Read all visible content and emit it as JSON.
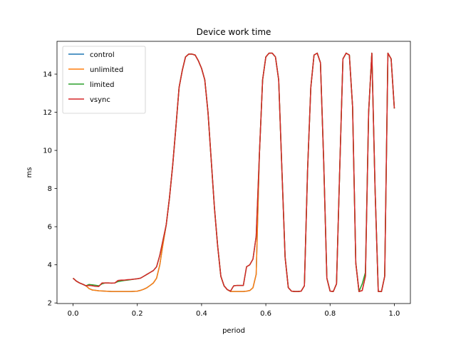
{
  "chart_data": {
    "type": "line",
    "title": "Device work time",
    "xlabel": "period",
    "ylabel": "ms",
    "x": [
      0,
      0.01,
      0.02,
      0.03,
      0.04,
      0.05,
      0.06,
      0.07,
      0.08,
      0.09,
      0.1,
      0.11,
      0.12,
      0.13,
      0.14,
      0.15,
      0.16,
      0.17,
      0.18,
      0.19,
      0.2,
      0.21,
      0.22,
      0.23,
      0.24,
      0.25,
      0.26,
      0.27,
      0.28,
      0.29,
      0.3,
      0.31,
      0.32,
      0.33,
      0.34,
      0.35,
      0.36,
      0.37,
      0.38,
      0.39,
      0.4,
      0.41,
      0.42,
      0.43,
      0.44,
      0.45,
      0.46,
      0.47,
      0.48,
      0.49,
      0.5,
      0.51,
      0.52,
      0.53,
      0.54,
      0.55,
      0.56,
      0.57,
      0.58,
      0.59,
      0.6,
      0.61,
      0.62,
      0.63,
      0.64,
      0.65,
      0.66,
      0.67,
      0.68,
      0.69,
      0.7,
      0.71,
      0.72,
      0.73,
      0.74,
      0.75,
      0.76,
      0.77,
      0.78,
      0.79,
      0.8,
      0.81,
      0.82,
      0.83,
      0.84,
      0.85,
      0.86,
      0.87,
      0.88,
      0.89,
      0.9,
      0.91,
      0.92,
      0.93,
      0.94,
      0.95,
      0.96,
      0.97,
      0.98,
      0.99,
      1
    ],
    "series": [
      {
        "name": "control",
        "color": "#1f77b4",
        "values": [
          3.3,
          3.15,
          3.05,
          2.98,
          2.9,
          2.75,
          2.68,
          2.66,
          2.64,
          2.63,
          2.62,
          2.61,
          2.6,
          2.6,
          2.6,
          2.6,
          2.6,
          2.6,
          2.6,
          2.61,
          2.62,
          2.66,
          2.72,
          2.8,
          2.92,
          3.05,
          3.3,
          4.0,
          5.1,
          6.1,
          7.5,
          9.2,
          11.2,
          13.3,
          14.2,
          14.9,
          15.05,
          15.05,
          15.0,
          14.7,
          14.3,
          13.7,
          12.0,
          9.5,
          7.0,
          5.0,
          3.4,
          2.9,
          2.7,
          2.6,
          2.6,
          2.6,
          2.6,
          2.6,
          2.62,
          2.65,
          2.8,
          3.5,
          9.8,
          13.7,
          14.9,
          15.1,
          15.1,
          14.9,
          13.7,
          9.0,
          4.4,
          2.8,
          2.62,
          2.6,
          2.6,
          2.62,
          2.9,
          9.0,
          13.3,
          15.0,
          15.1,
          14.6,
          9.5,
          3.3,
          2.62,
          2.6,
          3.0,
          9.0,
          14.8,
          15.1,
          15.0,
          12.3,
          4.1,
          2.6,
          2.65,
          3.4,
          12.0,
          15.1,
          8.0,
          2.6,
          2.6,
          3.4,
          15.1,
          14.8,
          12.2
        ]
      },
      {
        "name": "unlimited",
        "color": "#ff7f0e",
        "values": [
          3.3,
          3.15,
          3.05,
          2.98,
          2.9,
          2.75,
          2.68,
          2.66,
          2.64,
          2.63,
          2.62,
          2.61,
          2.6,
          2.6,
          2.6,
          2.6,
          2.6,
          2.6,
          2.6,
          2.61,
          2.62,
          2.66,
          2.72,
          2.8,
          2.92,
          3.05,
          3.3,
          4.0,
          5.1,
          6.1,
          7.5,
          9.2,
          11.2,
          13.3,
          14.2,
          14.9,
          15.05,
          15.05,
          15.0,
          14.7,
          14.3,
          13.7,
          12.0,
          9.5,
          7.0,
          5.0,
          3.4,
          2.9,
          2.7,
          2.6,
          2.6,
          2.6,
          2.6,
          2.6,
          2.62,
          2.65,
          2.8,
          3.5,
          9.8,
          13.7,
          14.9,
          15.1,
          15.1,
          14.9,
          13.7,
          9.0,
          4.4,
          2.8,
          2.62,
          2.6,
          2.6,
          2.62,
          2.9,
          9.0,
          13.3,
          15.0,
          15.1,
          14.6,
          9.5,
          3.3,
          2.62,
          2.6,
          3.0,
          9.0,
          14.8,
          15.1,
          15.0,
          12.3,
          4.1,
          2.6,
          2.65,
          3.4,
          12.0,
          15.1,
          8.0,
          2.6,
          2.6,
          3.4,
          15.1,
          14.8,
          12.2
        ]
      },
      {
        "name": "limited",
        "color": "#2ca02c",
        "values": [
          3.3,
          3.15,
          3.05,
          2.98,
          2.9,
          2.97,
          2.95,
          2.93,
          2.9,
          3.0,
          3.05,
          3.05,
          3.04,
          3.05,
          3.12,
          3.15,
          3.18,
          3.2,
          3.22,
          3.25,
          3.27,
          3.3,
          3.4,
          3.5,
          3.6,
          3.7,
          3.9,
          4.5,
          5.3,
          6.1,
          7.5,
          9.2,
          11.2,
          13.3,
          14.2,
          14.9,
          15.05,
          15.05,
          15.0,
          14.7,
          14.3,
          13.7,
          12.0,
          9.5,
          7.0,
          5.0,
          3.4,
          2.9,
          2.7,
          2.62,
          2.9,
          2.92,
          2.92,
          2.92,
          3.9,
          4.0,
          4.3,
          5.5,
          9.8,
          13.7,
          14.9,
          15.1,
          15.1,
          14.9,
          13.7,
          9.0,
          4.4,
          2.8,
          2.62,
          2.6,
          2.6,
          2.62,
          2.9,
          9.0,
          13.3,
          15.0,
          15.1,
          14.6,
          9.5,
          3.3,
          2.62,
          2.6,
          3.0,
          9.0,
          14.8,
          15.1,
          15.0,
          12.3,
          4.1,
          2.6,
          3.0,
          3.6,
          12.0,
          15.1,
          8.0,
          2.6,
          2.6,
          3.4,
          15.1,
          14.8,
          12.2
        ]
      },
      {
        "name": "vsync",
        "color": "#d62728",
        "values": [
          3.3,
          3.15,
          3.05,
          2.98,
          2.9,
          2.92,
          2.9,
          2.87,
          2.86,
          3.05,
          3.05,
          3.05,
          3.04,
          3.05,
          3.18,
          3.2,
          3.2,
          3.22,
          3.23,
          3.25,
          3.27,
          3.3,
          3.4,
          3.5,
          3.6,
          3.7,
          3.9,
          4.5,
          5.3,
          6.1,
          7.5,
          9.2,
          11.2,
          13.3,
          14.2,
          14.9,
          15.05,
          15.05,
          15.0,
          14.7,
          14.3,
          13.7,
          12.0,
          9.5,
          7.0,
          5.0,
          3.4,
          2.9,
          2.7,
          2.62,
          2.9,
          2.92,
          2.92,
          2.92,
          3.9,
          4.0,
          4.3,
          5.5,
          9.8,
          13.7,
          14.9,
          15.1,
          15.1,
          14.9,
          13.7,
          9.0,
          4.4,
          2.8,
          2.62,
          2.6,
          2.6,
          2.62,
          2.9,
          9.0,
          13.3,
          15.0,
          15.1,
          14.6,
          9.5,
          3.3,
          2.62,
          2.6,
          3.0,
          9.0,
          14.8,
          15.1,
          15.0,
          12.3,
          4.1,
          2.6,
          2.65,
          3.4,
          12.0,
          15.1,
          8.0,
          2.6,
          2.6,
          3.4,
          15.1,
          14.8,
          12.2
        ]
      }
    ],
    "xlim": [
      -0.05,
      1.05
    ],
    "ylim": [
      1.97,
      15.72
    ],
    "xticks": [
      {
        "value": 0,
        "label": "0.0"
      },
      {
        "value": 0.2,
        "label": "0.2"
      },
      {
        "value": 0.4,
        "label": "0.4"
      },
      {
        "value": 0.6,
        "label": "0.6"
      },
      {
        "value": 0.8,
        "label": "0.8"
      },
      {
        "value": 1,
        "label": "1.0"
      }
    ],
    "yticks": [
      2,
      4,
      6,
      8,
      10,
      12,
      14
    ],
    "legend": "upper left"
  }
}
